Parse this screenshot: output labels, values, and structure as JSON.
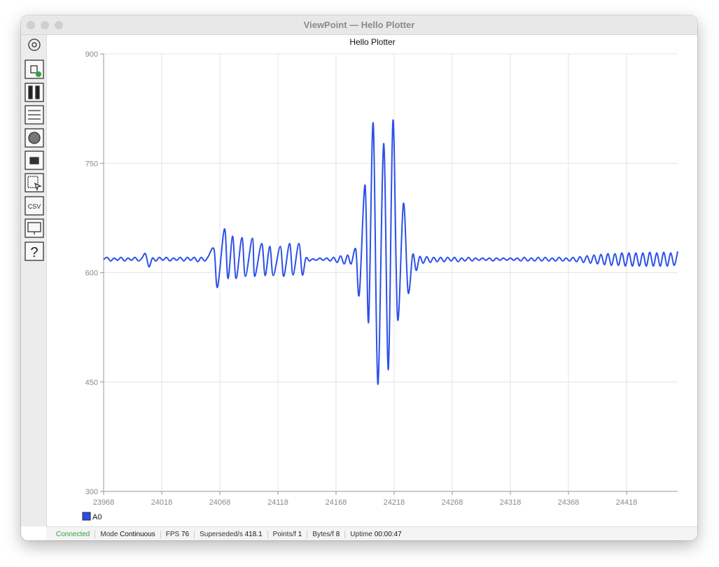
{
  "window": {
    "title": "ViewPoint — Hello Plotter"
  },
  "toolbar": {
    "csv": "CSV",
    "help": "?"
  },
  "chart_data": {
    "type": "line",
    "title": "Hello Plotter",
    "x": [
      23968,
      23971,
      23974,
      23977,
      23980,
      23983,
      23986,
      23989,
      23992,
      23995,
      23998,
      24001,
      24004,
      24007,
      24010,
      24013,
      24016,
      24019,
      24022,
      24025,
      24028,
      24031,
      24034,
      24037,
      24040,
      24043,
      24046,
      24049,
      24052,
      24055,
      24058,
      24063,
      24066,
      24072,
      24075,
      24079,
      24082,
      24087,
      24090,
      24096,
      24098,
      24104,
      24107,
      24111,
      24114,
      24120,
      24123,
      24128,
      24131,
      24136,
      24139,
      24142,
      24145,
      24148,
      24151,
      24154,
      24157,
      24160,
      24163,
      24166,
      24169,
      24172,
      24175,
      24178,
      24181,
      24185,
      24188,
      24193,
      24196,
      24200,
      24204,
      24209,
      24213,
      24217,
      24221,
      24226,
      24230,
      24234,
      24237,
      24240,
      24243,
      24246,
      24249,
      24252,
      24255,
      24258,
      24261,
      24264,
      24267,
      24270,
      24273,
      24276,
      24279,
      24282,
      24285,
      24288,
      24291,
      24294,
      24297,
      24300,
      24303,
      24306,
      24309,
      24312,
      24315,
      24318,
      24321,
      24324,
      24327,
      24330,
      24333,
      24336,
      24339,
      24342,
      24345,
      24348,
      24351,
      24354,
      24357,
      24360,
      24363,
      24366,
      24369,
      24372,
      24375,
      24378,
      24381,
      24384,
      24387,
      24390,
      24393,
      24396,
      24399,
      24402,
      24405,
      24408,
      24411,
      24414,
      24417,
      24420,
      24423,
      24426,
      24429,
      24432,
      24435,
      24438,
      24441,
      24444,
      24447,
      24450,
      24453,
      24456,
      24459,
      24462
    ],
    "series": [
      {
        "name": "A0",
        "color": "#2b50e8",
        "values": [
          618,
          621,
          616,
          620,
          617,
          621,
          616,
          620,
          617,
          621,
          616,
          620,
          626,
          608,
          620,
          616,
          621,
          617,
          621,
          616,
          620,
          617,
          621,
          616,
          621,
          617,
          621,
          615,
          621,
          616,
          622,
          632,
          580,
          660,
          592,
          650,
          592,
          648,
          595,
          647,
          595,
          640,
          596,
          636,
          596,
          636,
          595,
          640,
          597,
          640,
          597,
          620,
          616,
          619,
          617,
          620,
          617,
          620,
          616,
          621,
          614,
          623,
          612,
          624,
          612,
          632,
          570,
          720,
          532,
          805,
          447,
          777,
          467,
          809,
          536,
          695,
          573,
          625,
          603,
          622,
          613,
          622,
          614,
          621,
          615,
          621,
          615,
          621,
          616,
          621,
          615,
          620,
          616,
          621,
          616,
          620,
          617,
          620,
          617,
          620,
          616,
          620,
          617,
          620,
          617,
          620,
          617,
          620,
          616,
          621,
          616,
          620,
          616,
          621,
          616,
          621,
          616,
          620,
          616,
          621,
          616,
          620,
          616,
          621,
          615,
          622,
          614,
          623,
          613,
          624,
          612,
          625,
          611,
          626,
          610,
          626,
          610,
          627,
          609,
          627,
          609,
          627,
          609,
          627,
          609,
          628,
          609,
          627,
          609,
          628,
          609,
          627,
          610,
          629
        ]
      }
    ],
    "xlim": [
      23968,
      24462
    ],
    "xticks": [
      23968,
      24018,
      24068,
      24118,
      24168,
      24218,
      24268,
      24318,
      24368,
      24418
    ],
    "ylim": [
      300,
      900
    ],
    "yticks": [
      300,
      450,
      600,
      750,
      900
    ],
    "grid": true
  },
  "status_bar": {
    "connection": "Connected",
    "items": [
      {
        "label": "Mode",
        "value": "Continuous"
      },
      {
        "label": "FPS",
        "value": 76
      },
      {
        "label": "Superseded/s",
        "value": 418.1
      },
      {
        "label": "Points/f",
        "value": 1
      },
      {
        "label": "Bytes/f",
        "value": 8
      },
      {
        "label": "Uptime",
        "value": "00:00:47"
      }
    ]
  }
}
